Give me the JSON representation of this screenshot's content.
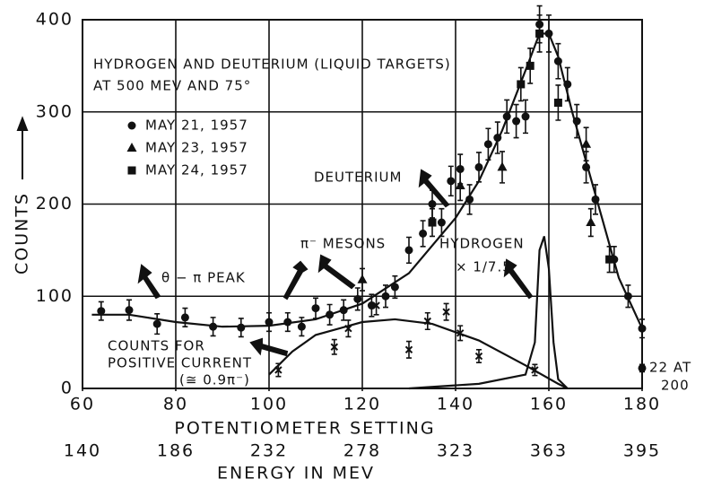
{
  "chart_data": {
    "type": "scatter",
    "xlabel": "POTENTIOMETER SETTING",
    "x2label": "ENERGY IN MEV",
    "ylabel": "COUNTS",
    "xlim": [
      60,
      180
    ],
    "ylim": [
      0,
      400
    ],
    "xticks": [
      60,
      80,
      100,
      120,
      140,
      160,
      180
    ],
    "yticks": [
      0,
      100,
      200,
      300,
      400
    ],
    "x2ticks": [
      {
        "value": 60,
        "label": "140"
      },
      {
        "value": 80,
        "label": "186"
      },
      {
        "value": 100,
        "label": "232"
      },
      {
        "value": 120,
        "label": "278"
      },
      {
        "value": 140,
        "label": "323"
      },
      {
        "value": 160,
        "label": "363"
      },
      {
        "value": 180,
        "label": "395"
      }
    ],
    "grid": true,
    "annotations": [
      "HYDROGEN AND DEUTERIUM (LIQUID TARGETS)",
      "AT 500 MEV AND 75°",
      "DEUTERIUM",
      "π⁻ MESONS",
      "HYDROGEN",
      "× 1/7.5",
      "θ − π PEAK",
      "COUNTS FOR",
      "POSITIVE CURRENT",
      "(≅ 0.9π⁻)",
      "22 AT",
      "200"
    ],
    "series": [
      {
        "name": "MAY 21, 1957",
        "marker": "circle",
        "x": [
          64,
          70,
          76,
          82,
          88,
          94,
          100,
          104,
          107,
          110,
          113,
          116,
          119,
          122,
          125,
          127,
          130,
          133,
          135,
          137,
          139,
          141,
          143,
          145,
          147,
          149,
          151,
          153,
          155,
          158,
          160,
          162,
          164,
          166,
          168,
          170,
          174,
          177,
          180,
          180
        ],
        "values": [
          84,
          85,
          70,
          77,
          67,
          66,
          72,
          72,
          67,
          87,
          80,
          85,
          97,
          90,
          100,
          110,
          150,
          168,
          200,
          180,
          225,
          238,
          205,
          240,
          265,
          272,
          295,
          290,
          295,
          395,
          385,
          355,
          330,
          290,
          240,
          205,
          140,
          100,
          65,
          22
        ],
        "errors": [
          10,
          11,
          11,
          10,
          10,
          10,
          10,
          10,
          10,
          11,
          11,
          11,
          12,
          12,
          12,
          12,
          14,
          14,
          15,
          15,
          16,
          16,
          16,
          16,
          17,
          17,
          18,
          18,
          18,
          20,
          20,
          19,
          18,
          18,
          17,
          16,
          14,
          12,
          10,
          4
        ]
      },
      {
        "name": "MAY 23, 1957",
        "marker": "triangle",
        "x": [
          120,
          141,
          150,
          168,
          169
        ],
        "values": [
          118,
          220,
          240,
          265,
          180
        ],
        "errors": [
          12,
          16,
          17,
          18,
          15
        ]
      },
      {
        "name": "MAY 24, 1957",
        "marker": "square",
        "x": [
          135,
          154,
          156,
          158,
          162,
          173
        ],
        "values": [
          180,
          330,
          350,
          385,
          310,
          140
        ],
        "errors": [
          15,
          18,
          19,
          20,
          19,
          14
        ]
      },
      {
        "marker": "cross",
        "x": [
          102,
          114,
          117,
          123,
          130,
          134,
          138,
          141,
          145,
          157
        ],
        "values": [
          20,
          45,
          65,
          90,
          42,
          73,
          83,
          60,
          35,
          20
        ],
        "errors": [
          7,
          8,
          9,
          10,
          9,
          9,
          9,
          8,
          7,
          6
        ]
      }
    ],
    "curves": [
      {
        "x": [
          62,
          70,
          80,
          90,
          100,
          110,
          120,
          130,
          140,
          145,
          150,
          155,
          158,
          160,
          162,
          165,
          170,
          175,
          180
        ],
        "values": [
          80,
          80,
          72,
          67,
          68,
          75,
          92,
          125,
          185,
          225,
          280,
          345,
          385,
          385,
          360,
          300,
          210,
          120,
          65
        ]
      },
      {
        "x": [
          100,
          105,
          110,
          120,
          127,
          135,
          145,
          155,
          162,
          164
        ],
        "values": [
          15,
          40,
          58,
          72,
          75,
          70,
          52,
          25,
          5,
          0
        ]
      },
      {
        "x": [
          130,
          145,
          155,
          157,
          158,
          159,
          160,
          161,
          162,
          164
        ],
        "values": [
          0,
          5,
          15,
          50,
          150,
          165,
          130,
          50,
          10,
          0
        ]
      }
    ]
  }
}
